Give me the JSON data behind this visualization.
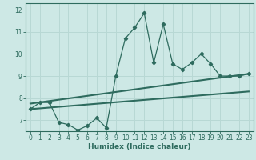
{
  "xlabel": "Humidex (Indice chaleur)",
  "xlim": [
    -0.5,
    23.5
  ],
  "ylim": [
    6.5,
    12.3
  ],
  "yticks": [
    7,
    8,
    9,
    10,
    11,
    12
  ],
  "xticks": [
    0,
    1,
    2,
    3,
    4,
    5,
    6,
    7,
    8,
    9,
    10,
    11,
    12,
    13,
    14,
    15,
    16,
    17,
    18,
    19,
    20,
    21,
    22,
    23
  ],
  "bg_color": "#cde8e5",
  "line_color": "#2e6b5e",
  "grid_color": "#b8d8d4",
  "series": {
    "main": {
      "x": [
        0,
        1,
        2,
        3,
        4,
        5,
        6,
        7,
        8,
        9,
        10,
        11,
        12,
        13,
        14,
        15,
        16,
        17,
        18,
        19,
        20,
        21,
        22,
        23
      ],
      "y": [
        7.5,
        7.8,
        7.8,
        6.9,
        6.8,
        6.55,
        6.75,
        7.1,
        6.65,
        9.0,
        10.7,
        11.2,
        11.85,
        9.6,
        11.35,
        9.55,
        9.3,
        9.6,
        10.0,
        9.55,
        9.0,
        9.0,
        9.0,
        9.1
      ]
    },
    "upper": {
      "x": [
        0,
        23
      ],
      "y": [
        7.75,
        9.1
      ]
    },
    "lower": {
      "x": [
        0,
        23
      ],
      "y": [
        7.5,
        8.3
      ]
    }
  }
}
